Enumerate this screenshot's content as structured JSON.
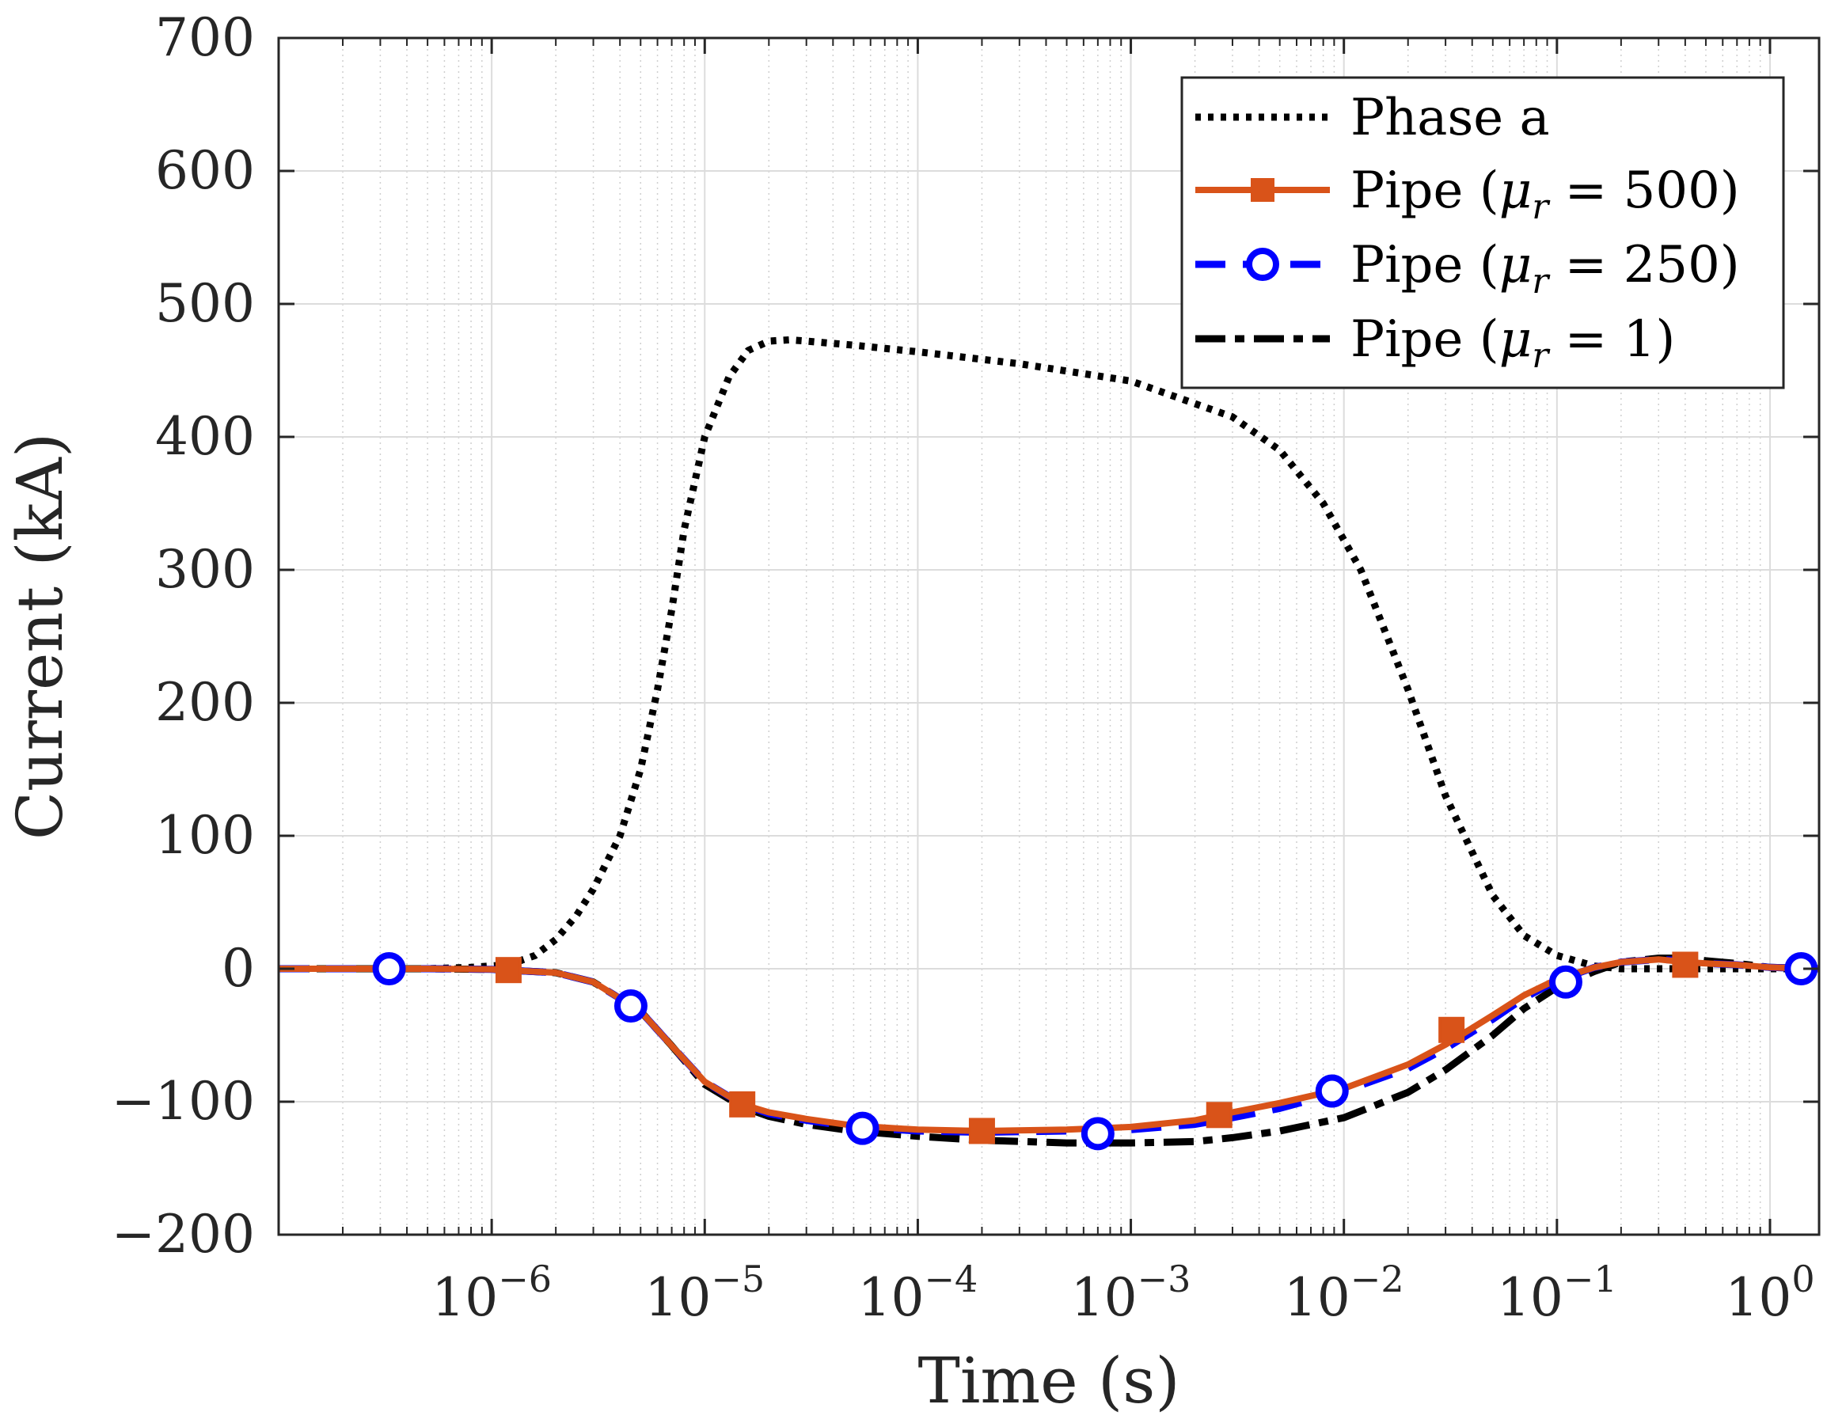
{
  "chart_data": {
    "type": "line",
    "title": "",
    "xlabel": "Time (s)",
    "ylabel": "Current (kA)",
    "xscale": "log",
    "xlim": [
      1e-07,
      1.7
    ],
    "ylim": [
      -200,
      700
    ],
    "grid": true,
    "legend_position": "top-right",
    "x_ticks": [
      {
        "value": 1e-06,
        "base": "10",
        "exp": "−6"
      },
      {
        "value": 1e-05,
        "base": "10",
        "exp": "−5"
      },
      {
        "value": 0.0001,
        "base": "10",
        "exp": "−4"
      },
      {
        "value": 0.001,
        "base": "10",
        "exp": "−3"
      },
      {
        "value": 0.01,
        "base": "10",
        "exp": "−2"
      },
      {
        "value": 0.1,
        "base": "10",
        "exp": "−1"
      },
      {
        "value": 1,
        "base": "10",
        "exp": "0"
      }
    ],
    "y_ticks": [
      {
        "value": 700,
        "label": "700"
      },
      {
        "value": 600,
        "label": "600"
      },
      {
        "value": 500,
        "label": "500"
      },
      {
        "value": 400,
        "label": "400"
      },
      {
        "value": 300,
        "label": "300"
      },
      {
        "value": 200,
        "label": "200"
      },
      {
        "value": 100,
        "label": "100"
      },
      {
        "value": 0,
        "label": "0"
      },
      {
        "value": -100,
        "label": "−100"
      },
      {
        "value": -200,
        "label": "−200"
      }
    ],
    "series": [
      {
        "name": "Phase a",
        "label_prefix": "Phase a",
        "label_math": "",
        "color": "#000000",
        "style": "dotted",
        "marker": "none",
        "x": [
          1e-07,
          5e-07,
          8e-07,
          1.2e-06,
          1.6e-06,
          2e-06,
          2.5e-06,
          3e-06,
          4e-06,
          5e-06,
          6e-06,
          7e-06,
          8e-06,
          1e-05,
          1.3e-05,
          1.6e-05,
          2e-05,
          2.5e-05,
          3e-05,
          5e-05,
          0.0001,
          0.0003,
          0.001,
          0.003,
          0.005,
          0.008,
          0.012,
          0.02,
          0.03,
          0.05,
          0.07,
          0.1,
          0.15,
          0.2,
          0.3,
          0.5,
          1,
          1.7
        ],
        "values": [
          0,
          0,
          1,
          3,
          10,
          22,
          40,
          60,
          100,
          150,
          210,
          270,
          330,
          400,
          445,
          465,
          472,
          473,
          472,
          469,
          464,
          455,
          442,
          415,
          390,
          350,
          300,
          210,
          130,
          55,
          25,
          10,
          2,
          0,
          0,
          0,
          0,
          0
        ]
      },
      {
        "name": "Pipe (μr = 500)",
        "label_prefix": "Pipe (",
        "label_math": "500",
        "color": "#d95319",
        "style": "solid",
        "marker": "square",
        "x": [
          1e-07,
          5e-07,
          1e-06,
          2e-06,
          3e-06,
          5e-06,
          7e-06,
          1e-05,
          1.5e-05,
          2e-05,
          3e-05,
          5e-05,
          0.0001,
          0.0002,
          0.0005,
          0.001,
          0.002,
          0.003,
          0.005,
          0.01,
          0.02,
          0.03,
          0.05,
          0.07,
          0.1,
          0.15,
          0.2,
          0.3,
          0.4,
          0.5,
          0.7,
          1,
          1.7
        ],
        "values": [
          0,
          0,
          -0.5,
          -3,
          -10,
          -32,
          -58,
          -85,
          -102,
          -108,
          -113,
          -118,
          -121,
          -122,
          -121,
          -119,
          -114,
          -108,
          -101,
          -90,
          -72,
          -57,
          -35,
          -20,
          -8,
          1,
          5,
          7,
          5,
          4,
          3,
          1,
          0
        ],
        "markers_x": [
          1.2e-06,
          1.5e-05,
          0.0002,
          0.0026,
          0.032,
          0.4
        ],
        "markers_y": [
          -1,
          -102,
          -122,
          -110,
          -46,
          3
        ]
      },
      {
        "name": "Pipe (μr = 250)",
        "label_prefix": "Pipe (",
        "label_math": "250",
        "color": "#0000ff",
        "style": "dashed",
        "marker": "circle",
        "x": [
          1e-07,
          5e-07,
          1e-06,
          2e-06,
          3e-06,
          5e-06,
          7e-06,
          1e-05,
          1.5e-05,
          2e-05,
          3e-05,
          5e-05,
          0.0001,
          0.0002,
          0.0005,
          0.001,
          0.002,
          0.003,
          0.005,
          0.01,
          0.02,
          0.03,
          0.05,
          0.07,
          0.1,
          0.15,
          0.2,
          0.3,
          0.4,
          0.5,
          0.7,
          1,
          1.7
        ],
        "values": [
          0,
          0,
          -0.5,
          -3,
          -10,
          -32,
          -58,
          -85,
          -102,
          -109,
          -114,
          -119,
          -122,
          -123,
          -122,
          -121,
          -117,
          -112,
          -105,
          -92,
          -75,
          -60,
          -38,
          -22,
          -9,
          1,
          5,
          7,
          6,
          4,
          3,
          1,
          0
        ],
        "markers_x": [
          3.3e-07,
          4.5e-06,
          5.5e-05,
          0.0007,
          0.0088,
          0.11,
          1.4
        ],
        "markers_y": [
          0,
          -28,
          -120,
          -124,
          -92,
          -10,
          0
        ]
      },
      {
        "name": "Pipe (μr = 1)",
        "label_prefix": "Pipe (",
        "label_math": "1",
        "color": "#000000",
        "style": "dashdot",
        "marker": "none",
        "x": [
          1e-07,
          5e-07,
          1e-06,
          2e-06,
          3e-06,
          5e-06,
          7e-06,
          1e-05,
          1.5e-05,
          2e-05,
          3e-05,
          5e-05,
          0.0001,
          0.0002,
          0.0005,
          0.001,
          0.002,
          0.003,
          0.005,
          0.01,
          0.02,
          0.03,
          0.05,
          0.07,
          0.1,
          0.15,
          0.2,
          0.3,
          0.4,
          0.5,
          0.7,
          1,
          1.7
        ],
        "values": [
          0,
          0,
          -0.5,
          -3,
          -10,
          -32,
          -58,
          -87,
          -104,
          -111,
          -117,
          -122,
          -126,
          -129,
          -131,
          -131,
          -130,
          -127,
          -122,
          -112,
          -93,
          -76,
          -50,
          -30,
          -14,
          -2,
          5,
          8,
          8,
          6,
          4,
          1,
          0
        ]
      }
    ]
  }
}
